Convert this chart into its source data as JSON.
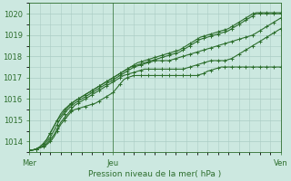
{
  "xlabel": "Pression niveau de la mer( hPa )",
  "bg_color": "#cce8e0",
  "plot_bg_color": "#cce8e0",
  "grid_color": "#aaccc4",
  "line_color": "#2d6e2d",
  "axis_label_color": "#2d6e2d",
  "ylim": [
    1013.5,
    1020.5
  ],
  "yticks": [
    1014,
    1015,
    1016,
    1017,
    1018,
    1019,
    1020
  ],
  "num_points": 73,
  "xtick_positions": [
    0,
    24,
    72
  ],
  "xtick_labels": [
    "Mer",
    "Jeu",
    "Ven"
  ],
  "lines": [
    [
      1013.6,
      1013.6,
      1013.65,
      1013.7,
      1013.75,
      1013.85,
      1014.0,
      1014.2,
      1014.5,
      1014.8,
      1015.0,
      1015.2,
      1015.4,
      1015.5,
      1015.55,
      1015.6,
      1015.65,
      1015.7,
      1015.75,
      1015.8,
      1015.9,
      1016.0,
      1016.1,
      1016.2,
      1016.3,
      1016.5,
      1016.7,
      1016.9,
      1017.0,
      1017.05,
      1017.1,
      1017.1,
      1017.1,
      1017.1,
      1017.1,
      1017.1,
      1017.1,
      1017.1,
      1017.1,
      1017.1,
      1017.1,
      1017.1,
      1017.1,
      1017.1,
      1017.1,
      1017.1,
      1017.1,
      1017.1,
      1017.1,
      1017.15,
      1017.2,
      1017.3,
      1017.35,
      1017.4,
      1017.45,
      1017.5,
      1017.5,
      1017.5,
      1017.5,
      1017.5,
      1017.5,
      1017.5,
      1017.5,
      1017.5,
      1017.5,
      1017.5,
      1017.5,
      1017.5,
      1017.5,
      1017.5,
      1017.5,
      1017.5,
      1017.5
    ],
    [
      1013.6,
      1013.6,
      1013.65,
      1013.7,
      1013.8,
      1013.9,
      1014.1,
      1014.3,
      1014.6,
      1014.9,
      1015.1,
      1015.3,
      1015.5,
      1015.7,
      1015.8,
      1015.9,
      1016.0,
      1016.1,
      1016.2,
      1016.3,
      1016.4,
      1016.5,
      1016.6,
      1016.7,
      1016.8,
      1016.9,
      1017.0,
      1017.1,
      1017.15,
      1017.2,
      1017.25,
      1017.3,
      1017.35,
      1017.4,
      1017.4,
      1017.4,
      1017.4,
      1017.4,
      1017.4,
      1017.4,
      1017.4,
      1017.4,
      1017.4,
      1017.4,
      1017.4,
      1017.45,
      1017.5,
      1017.55,
      1017.6,
      1017.65,
      1017.7,
      1017.75,
      1017.8,
      1017.8,
      1017.8,
      1017.8,
      1017.8,
      1017.85,
      1017.9,
      1018.0,
      1018.1,
      1018.2,
      1018.3,
      1018.4,
      1018.5,
      1018.6,
      1018.7,
      1018.8,
      1018.9,
      1019.0,
      1019.1,
      1019.2,
      1019.3
    ],
    [
      1013.6,
      1013.6,
      1013.65,
      1013.7,
      1013.8,
      1014.0,
      1014.2,
      1014.5,
      1014.8,
      1015.1,
      1015.3,
      1015.5,
      1015.65,
      1015.8,
      1015.9,
      1016.0,
      1016.1,
      1016.2,
      1016.3,
      1016.4,
      1016.5,
      1016.6,
      1016.7,
      1016.8,
      1016.9,
      1017.0,
      1017.1,
      1017.2,
      1017.3,
      1017.4,
      1017.5,
      1017.55,
      1017.6,
      1017.65,
      1017.7,
      1017.75,
      1017.8,
      1017.8,
      1017.8,
      1017.8,
      1017.8,
      1017.85,
      1017.9,
      1017.95,
      1018.0,
      1018.05,
      1018.1,
      1018.15,
      1018.2,
      1018.25,
      1018.3,
      1018.35,
      1018.4,
      1018.45,
      1018.5,
      1018.55,
      1018.6,
      1018.65,
      1018.7,
      1018.75,
      1018.8,
      1018.85,
      1018.9,
      1018.95,
      1019.0,
      1019.1,
      1019.2,
      1019.3,
      1019.4,
      1019.5,
      1019.6,
      1019.7,
      1019.8
    ],
    [
      1013.6,
      1013.6,
      1013.65,
      1013.75,
      1013.9,
      1014.1,
      1014.4,
      1014.7,
      1015.0,
      1015.2,
      1015.4,
      1015.6,
      1015.75,
      1015.9,
      1016.0,
      1016.1,
      1016.2,
      1016.3,
      1016.4,
      1016.5,
      1016.6,
      1016.7,
      1016.8,
      1016.9,
      1017.0,
      1017.1,
      1017.2,
      1017.3,
      1017.4,
      1017.5,
      1017.55,
      1017.6,
      1017.65,
      1017.7,
      1017.75,
      1017.8,
      1017.85,
      1017.9,
      1017.95,
      1018.0,
      1018.05,
      1018.1,
      1018.15,
      1018.2,
      1018.3,
      1018.4,
      1018.5,
      1018.6,
      1018.7,
      1018.8,
      1018.85,
      1018.9,
      1018.95,
      1019.0,
      1019.05,
      1019.1,
      1019.15,
      1019.2,
      1019.3,
      1019.4,
      1019.5,
      1019.6,
      1019.7,
      1019.8,
      1019.9,
      1020.0,
      1020.0,
      1020.0,
      1020.0,
      1020.0,
      1020.0,
      1020.0,
      1020.0
    ],
    [
      1013.6,
      1013.6,
      1013.65,
      1013.75,
      1013.9,
      1014.1,
      1014.4,
      1014.7,
      1015.0,
      1015.3,
      1015.5,
      1015.65,
      1015.8,
      1015.9,
      1016.0,
      1016.1,
      1016.2,
      1016.3,
      1016.4,
      1016.5,
      1016.6,
      1016.7,
      1016.8,
      1016.9,
      1017.0,
      1017.1,
      1017.2,
      1017.3,
      1017.4,
      1017.5,
      1017.6,
      1017.7,
      1017.75,
      1017.8,
      1017.85,
      1017.9,
      1017.95,
      1018.0,
      1018.05,
      1018.1,
      1018.15,
      1018.2,
      1018.25,
      1018.3,
      1018.4,
      1018.5,
      1018.6,
      1018.7,
      1018.8,
      1018.9,
      1018.95,
      1019.0,
      1019.05,
      1019.1,
      1019.15,
      1019.2,
      1019.25,
      1019.3,
      1019.4,
      1019.5,
      1019.6,
      1019.7,
      1019.8,
      1019.9,
      1020.0,
      1020.05,
      1020.05,
      1020.05,
      1020.05,
      1020.05,
      1020.05,
      1020.05,
      1020.05
    ]
  ]
}
